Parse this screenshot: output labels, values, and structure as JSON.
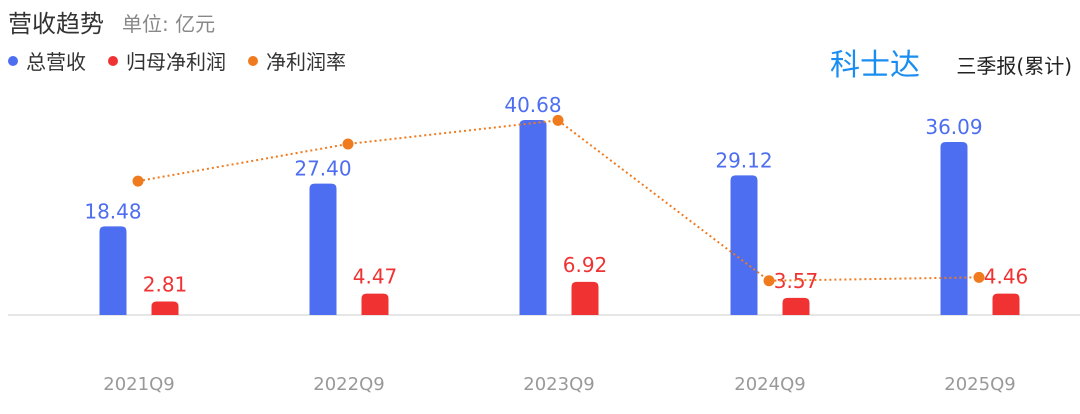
{
  "header": {
    "title": "营收趋势",
    "unit": "单位: 亿元",
    "company": "科士达",
    "report_type": "三季报(累计)"
  },
  "colors": {
    "revenue": "#4d6ef0",
    "net_profit": "#f03232",
    "net_margin": "#f07a1e",
    "company": "#1a8ef0",
    "axis_label": "#999999",
    "baseline": "#cccccc"
  },
  "chart_data": {
    "type": "bar",
    "categories": [
      "2021Q9",
      "2022Q9",
      "2023Q9",
      "2024Q9",
      "2025Q9"
    ],
    "series": [
      {
        "name": "总营收",
        "values": [
          18.48,
          27.4,
          40.68,
          29.12,
          36.09
        ],
        "labels": [
          "18.48",
          "27.40",
          "40.68",
          "29.12",
          "36.09"
        ]
      },
      {
        "name": "归母净利润",
        "values": [
          2.81,
          4.47,
          6.92,
          3.57,
          4.46
        ],
        "labels": [
          "2.81",
          "4.47",
          "6.92",
          "3.57",
          "4.46"
        ]
      },
      {
        "name": "净利润率",
        "type": "line",
        "values": [
          15.21,
          16.31,
          17.01,
          12.26,
          12.36
        ]
      }
    ],
    "ylim": [
      0,
      40.68
    ],
    "legend": "top-left",
    "grid": false
  }
}
